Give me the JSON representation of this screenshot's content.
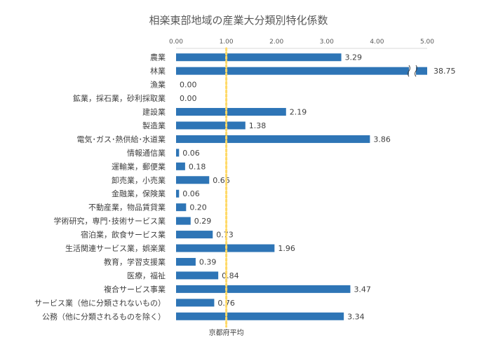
{
  "chart_data": {
    "type": "bar",
    "orientation": "horizontal",
    "title": "相楽東部地域の産業大分類別特化係数",
    "xlim": [
      0,
      5
    ],
    "x_ticks": [
      "0.00",
      "1.00",
      "2.00",
      "3.00",
      "4.00",
      "5.00"
    ],
    "axis_position": "top",
    "grid": false,
    "bar_color": "#2E75B6",
    "categories": [
      "農業",
      "林業",
      "漁業",
      "鉱業，採石業，砂利採取業",
      "建設業",
      "製造業",
      "電気･ガス･熱供給･水道業",
      "情報通信業",
      "運輸業，郵便業",
      "卸売業，小売業",
      "金融業，保険業",
      "不動産業，物品賃貸業",
      "学術研究，専門･技術サービス業",
      "宿泊業，飲食サービス業",
      "生活関連サービス業，娯楽業",
      "教育，学習支援業",
      "医療，福祉",
      "複合サービス事業",
      "サービス業（他に分類されないもの）",
      "公務（他に分類されるものを除く）"
    ],
    "values": [
      3.29,
      38.75,
      0.0,
      0.0,
      2.19,
      1.38,
      3.86,
      0.06,
      0.18,
      0.66,
      0.06,
      0.2,
      0.29,
      0.73,
      1.96,
      0.39,
      0.84,
      3.47,
      0.76,
      3.34
    ],
    "data_labels": [
      "3.29",
      "38.75",
      "0.00",
      "0.00",
      "2.19",
      "1.38",
      "3.86",
      "0.06",
      "0.18",
      "0.66",
      "0.06",
      "0.20",
      "0.29",
      "0.73",
      "1.96",
      "0.39",
      "0.84",
      "3.47",
      "0.76",
      "3.34"
    ],
    "axis_break_category": "林業",
    "reference_line": {
      "value": 1.0,
      "label": "京都府平均",
      "color": "#FFD966",
      "style": "dotted"
    }
  }
}
